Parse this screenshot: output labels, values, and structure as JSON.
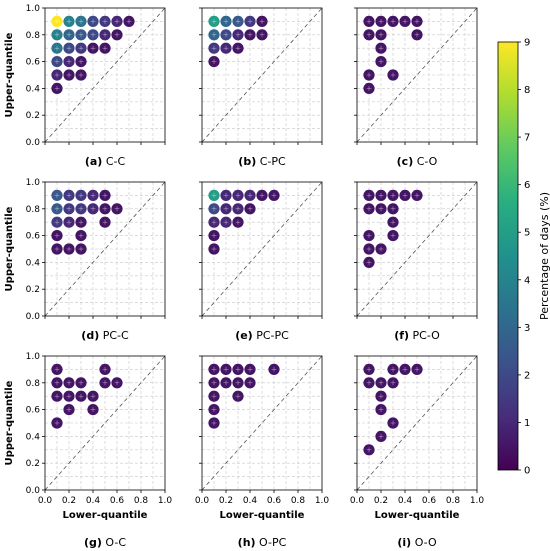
{
  "figure": {
    "ylabel": "Upper-quantile",
    "xlabel": "Lower-quantile",
    "colorbar_label": "Percentage of days (%)",
    "colorbar_ticks": [
      "0",
      "1",
      "2",
      "3",
      "4",
      "5",
      "6",
      "7",
      "8",
      "9"
    ],
    "colormap": "viridis",
    "grid": "dashed"
  },
  "chart_data": [
    {
      "type": "scatter",
      "caption_letter": "(a)",
      "caption_name": "C-C",
      "xlim": [
        0,
        1
      ],
      "ylim": [
        0,
        1
      ],
      "x_ticks": [
        "0.0",
        "0.2",
        "0.4",
        "0.6",
        "0.8",
        "1.0"
      ],
      "y_ticks": [
        "0.0",
        "0.2",
        "0.4",
        "0.6",
        "0.8",
        "1.0"
      ],
      "points": [
        {
          "x": 0.1,
          "y": 0.9,
          "v": 9
        },
        {
          "x": 0.2,
          "y": 0.9,
          "v": 4
        },
        {
          "x": 0.3,
          "y": 0.9,
          "v": 3.5
        },
        {
          "x": 0.4,
          "y": 0.9,
          "v": 2
        },
        {
          "x": 0.5,
          "y": 0.9,
          "v": 1.5
        },
        {
          "x": 0.6,
          "y": 0.9,
          "v": 1
        },
        {
          "x": 0.7,
          "y": 0.9,
          "v": 0.5
        },
        {
          "x": 0.1,
          "y": 0.8,
          "v": 4
        },
        {
          "x": 0.2,
          "y": 0.8,
          "v": 3
        },
        {
          "x": 0.3,
          "y": 0.8,
          "v": 2.5
        },
        {
          "x": 0.4,
          "y": 0.8,
          "v": 2
        },
        {
          "x": 0.5,
          "y": 0.8,
          "v": 1
        },
        {
          "x": 0.6,
          "y": 0.8,
          "v": 0.5
        },
        {
          "x": 0.1,
          "y": 0.7,
          "v": 3.5
        },
        {
          "x": 0.2,
          "y": 0.7,
          "v": 2
        },
        {
          "x": 0.3,
          "y": 0.7,
          "v": 1.5
        },
        {
          "x": 0.4,
          "y": 0.7,
          "v": 0.5
        },
        {
          "x": 0.5,
          "y": 0.7,
          "v": 0.5
        },
        {
          "x": 0.1,
          "y": 0.6,
          "v": 2
        },
        {
          "x": 0.2,
          "y": 0.6,
          "v": 1
        },
        {
          "x": 0.3,
          "y": 0.6,
          "v": 0.5
        },
        {
          "x": 0.1,
          "y": 0.5,
          "v": 1
        },
        {
          "x": 0.2,
          "y": 0.5,
          "v": 0.5
        },
        {
          "x": 0.3,
          "y": 0.5,
          "v": 0.5
        },
        {
          "x": 0.1,
          "y": 0.4,
          "v": 0.5
        }
      ]
    },
    {
      "type": "scatter",
      "caption_letter": "(b)",
      "caption_name": "C-PC",
      "xlim": [
        0,
        1
      ],
      "ylim": [
        0,
        1
      ],
      "x_ticks": [
        "0.0",
        "0.2",
        "0.4",
        "0.6",
        "0.8",
        "1.0"
      ],
      "y_ticks": [
        "0.0",
        "0.2",
        "0.4",
        "0.6",
        "0.8",
        "1.0"
      ],
      "points": [
        {
          "x": 0.1,
          "y": 0.9,
          "v": 5
        },
        {
          "x": 0.2,
          "y": 0.9,
          "v": 3
        },
        {
          "x": 0.3,
          "y": 0.9,
          "v": 2.5
        },
        {
          "x": 0.4,
          "y": 0.9,
          "v": 1.5
        },
        {
          "x": 0.5,
          "y": 0.9,
          "v": 0.5
        },
        {
          "x": 0.1,
          "y": 0.8,
          "v": 3
        },
        {
          "x": 0.2,
          "y": 0.8,
          "v": 2
        },
        {
          "x": 0.3,
          "y": 0.8,
          "v": 1
        },
        {
          "x": 0.4,
          "y": 0.8,
          "v": 0.5
        },
        {
          "x": 0.5,
          "y": 0.8,
          "v": 0.5
        },
        {
          "x": 0.1,
          "y": 0.7,
          "v": 1.5
        },
        {
          "x": 0.2,
          "y": 0.7,
          "v": 1
        },
        {
          "x": 0.3,
          "y": 0.7,
          "v": 0.5
        },
        {
          "x": 0.1,
          "y": 0.6,
          "v": 0.5
        }
      ]
    },
    {
      "type": "scatter",
      "caption_letter": "(c)",
      "caption_name": "C-O",
      "xlim": [
        0,
        1
      ],
      "ylim": [
        0,
        1
      ],
      "x_ticks": [
        "0.0",
        "0.2",
        "0.4",
        "0.6",
        "0.8",
        "1.0"
      ],
      "y_ticks": [
        "0.0",
        "0.2",
        "0.4",
        "0.6",
        "0.8",
        "1.0"
      ],
      "points": [
        {
          "x": 0.1,
          "y": 0.9,
          "v": 0.5
        },
        {
          "x": 0.2,
          "y": 0.9,
          "v": 0.5
        },
        {
          "x": 0.3,
          "y": 0.9,
          "v": 0.5
        },
        {
          "x": 0.4,
          "y": 0.9,
          "v": 0.5
        },
        {
          "x": 0.5,
          "y": 0.9,
          "v": 0.5
        },
        {
          "x": 0.1,
          "y": 0.8,
          "v": 0.5
        },
        {
          "x": 0.2,
          "y": 0.8,
          "v": 0.5
        },
        {
          "x": 0.5,
          "y": 0.8,
          "v": 0.5
        },
        {
          "x": 0.2,
          "y": 0.7,
          "v": 0.5
        },
        {
          "x": 0.2,
          "y": 0.6,
          "v": 0.5
        },
        {
          "x": 0.1,
          "y": 0.5,
          "v": 0.5
        },
        {
          "x": 0.3,
          "y": 0.5,
          "v": 0.5
        },
        {
          "x": 0.1,
          "y": 0.4,
          "v": 0.5
        }
      ]
    },
    {
      "type": "scatter",
      "caption_letter": "(d)",
      "caption_name": "PC-C",
      "xlim": [
        0,
        1
      ],
      "ylim": [
        0,
        1
      ],
      "x_ticks": [
        "0.0",
        "0.2",
        "0.4",
        "0.6",
        "0.8",
        "1.0"
      ],
      "y_ticks": [
        "0.0",
        "0.2",
        "0.4",
        "0.6",
        "0.8",
        "1.0"
      ],
      "points": [
        {
          "x": 0.1,
          "y": 0.9,
          "v": 2.5
        },
        {
          "x": 0.2,
          "y": 0.9,
          "v": 1.5
        },
        {
          "x": 0.3,
          "y": 0.9,
          "v": 1.5
        },
        {
          "x": 0.4,
          "y": 0.9,
          "v": 1
        },
        {
          "x": 0.5,
          "y": 0.9,
          "v": 0.5
        },
        {
          "x": 0.1,
          "y": 0.8,
          "v": 2.5
        },
        {
          "x": 0.2,
          "y": 0.8,
          "v": 1.5
        },
        {
          "x": 0.3,
          "y": 0.8,
          "v": 1.5
        },
        {
          "x": 0.4,
          "y": 0.8,
          "v": 1
        },
        {
          "x": 0.5,
          "y": 0.8,
          "v": 0.5
        },
        {
          "x": 0.6,
          "y": 0.8,
          "v": 0.5
        },
        {
          "x": 0.1,
          "y": 0.7,
          "v": 1.5
        },
        {
          "x": 0.2,
          "y": 0.7,
          "v": 1
        },
        {
          "x": 0.3,
          "y": 0.7,
          "v": 0.5
        },
        {
          "x": 0.5,
          "y": 0.7,
          "v": 0.5
        },
        {
          "x": 0.1,
          "y": 0.6,
          "v": 0.5
        },
        {
          "x": 0.3,
          "y": 0.6,
          "v": 0.5
        },
        {
          "x": 0.1,
          "y": 0.5,
          "v": 0.5
        },
        {
          "x": 0.2,
          "y": 0.5,
          "v": 0.5
        },
        {
          "x": 0.3,
          "y": 0.5,
          "v": 0.5
        }
      ]
    },
    {
      "type": "scatter",
      "caption_letter": "(e)",
      "caption_name": "PC-PC",
      "xlim": [
        0,
        1
      ],
      "ylim": [
        0,
        1
      ],
      "x_ticks": [
        "0.0",
        "0.2",
        "0.4",
        "0.6",
        "0.8",
        "1.0"
      ],
      "y_ticks": [
        "0.0",
        "0.2",
        "0.4",
        "0.6",
        "0.8",
        "1.0"
      ],
      "points": [
        {
          "x": 0.1,
          "y": 0.9,
          "v": 5
        },
        {
          "x": 0.2,
          "y": 0.9,
          "v": 1
        },
        {
          "x": 0.3,
          "y": 0.9,
          "v": 1
        },
        {
          "x": 0.4,
          "y": 0.9,
          "v": 1
        },
        {
          "x": 0.5,
          "y": 0.9,
          "v": 0.5
        },
        {
          "x": 0.6,
          "y": 0.9,
          "v": 0.5
        },
        {
          "x": 0.1,
          "y": 0.8,
          "v": 2
        },
        {
          "x": 0.2,
          "y": 0.8,
          "v": 1
        },
        {
          "x": 0.3,
          "y": 0.8,
          "v": 1
        },
        {
          "x": 0.4,
          "y": 0.8,
          "v": 0.5
        },
        {
          "x": 0.1,
          "y": 0.7,
          "v": 1
        },
        {
          "x": 0.2,
          "y": 0.7,
          "v": 1
        },
        {
          "x": 0.3,
          "y": 0.7,
          "v": 0.5
        },
        {
          "x": 0.1,
          "y": 0.6,
          "v": 0.5
        },
        {
          "x": 0.1,
          "y": 0.5,
          "v": 0.5
        }
      ]
    },
    {
      "type": "scatter",
      "caption_letter": "(f)",
      "caption_name": "PC-O",
      "xlim": [
        0,
        1
      ],
      "ylim": [
        0,
        1
      ],
      "x_ticks": [
        "0.0",
        "0.2",
        "0.4",
        "0.6",
        "0.8",
        "1.0"
      ],
      "y_ticks": [
        "0.0",
        "0.2",
        "0.4",
        "0.6",
        "0.8",
        "1.0"
      ],
      "points": [
        {
          "x": 0.1,
          "y": 0.9,
          "v": 0.5
        },
        {
          "x": 0.2,
          "y": 0.9,
          "v": 0.5
        },
        {
          "x": 0.3,
          "y": 0.9,
          "v": 0.5
        },
        {
          "x": 0.4,
          "y": 0.9,
          "v": 0.5
        },
        {
          "x": 0.5,
          "y": 0.9,
          "v": 0.5
        },
        {
          "x": 0.1,
          "y": 0.8,
          "v": 0.5
        },
        {
          "x": 0.2,
          "y": 0.8,
          "v": 0.5
        },
        {
          "x": 0.3,
          "y": 0.8,
          "v": 0.5
        },
        {
          "x": 0.3,
          "y": 0.7,
          "v": 0.5
        },
        {
          "x": 0.1,
          "y": 0.6,
          "v": 0.5
        },
        {
          "x": 0.3,
          "y": 0.6,
          "v": 0.5
        },
        {
          "x": 0.1,
          "y": 0.5,
          "v": 0.5
        },
        {
          "x": 0.2,
          "y": 0.5,
          "v": 0.5
        },
        {
          "x": 0.1,
          "y": 0.4,
          "v": 0.5
        }
      ]
    },
    {
      "type": "scatter",
      "caption_letter": "(g)",
      "caption_name": "O-C",
      "xlim": [
        0,
        1
      ],
      "ylim": [
        0,
        1
      ],
      "x_ticks": [
        "0.0",
        "0.2",
        "0.4",
        "0.6",
        "0.8",
        "1.0"
      ],
      "y_ticks": [
        "0.0",
        "0.2",
        "0.4",
        "0.6",
        "0.8",
        "1.0"
      ],
      "points": [
        {
          "x": 0.1,
          "y": 0.9,
          "v": 0.5
        },
        {
          "x": 0.5,
          "y": 0.9,
          "v": 0.5
        },
        {
          "x": 0.1,
          "y": 0.8,
          "v": 0.5
        },
        {
          "x": 0.2,
          "y": 0.8,
          "v": 0.5
        },
        {
          "x": 0.3,
          "y": 0.8,
          "v": 0.5
        },
        {
          "x": 0.5,
          "y": 0.8,
          "v": 0.5
        },
        {
          "x": 0.6,
          "y": 0.8,
          "v": 0.5
        },
        {
          "x": 0.1,
          "y": 0.7,
          "v": 0.5
        },
        {
          "x": 0.2,
          "y": 0.7,
          "v": 0.5
        },
        {
          "x": 0.3,
          "y": 0.7,
          "v": 0.5
        },
        {
          "x": 0.4,
          "y": 0.7,
          "v": 0.5
        },
        {
          "x": 0.2,
          "y": 0.6,
          "v": 0.5
        },
        {
          "x": 0.4,
          "y": 0.6,
          "v": 0.5
        },
        {
          "x": 0.1,
          "y": 0.5,
          "v": 0.5
        }
      ]
    },
    {
      "type": "scatter",
      "caption_letter": "(h)",
      "caption_name": "O-PC",
      "xlim": [
        0,
        1
      ],
      "ylim": [
        0,
        1
      ],
      "x_ticks": [
        "0.0",
        "0.2",
        "0.4",
        "0.6",
        "0.8",
        "1.0"
      ],
      "y_ticks": [
        "0.0",
        "0.2",
        "0.4",
        "0.6",
        "0.8",
        "1.0"
      ],
      "points": [
        {
          "x": 0.1,
          "y": 0.9,
          "v": 0.5
        },
        {
          "x": 0.2,
          "y": 0.9,
          "v": 0.5
        },
        {
          "x": 0.3,
          "y": 0.9,
          "v": 0.5
        },
        {
          "x": 0.4,
          "y": 0.9,
          "v": 0.5
        },
        {
          "x": 0.6,
          "y": 0.9,
          "v": 0.5
        },
        {
          "x": 0.1,
          "y": 0.8,
          "v": 0.5
        },
        {
          "x": 0.2,
          "y": 0.8,
          "v": 0.5
        },
        {
          "x": 0.3,
          "y": 0.8,
          "v": 0.5
        },
        {
          "x": 0.4,
          "y": 0.8,
          "v": 0.5
        },
        {
          "x": 0.1,
          "y": 0.7,
          "v": 0.5
        },
        {
          "x": 0.3,
          "y": 0.7,
          "v": 0.5
        },
        {
          "x": 0.1,
          "y": 0.6,
          "v": 0.5
        },
        {
          "x": 0.1,
          "y": 0.5,
          "v": 0.5
        }
      ]
    },
    {
      "type": "scatter",
      "caption_letter": "(i)",
      "caption_name": "O-O",
      "xlim": [
        0,
        1
      ],
      "ylim": [
        0,
        1
      ],
      "x_ticks": [
        "0.0",
        "0.2",
        "0.4",
        "0.6",
        "0.8",
        "1.0"
      ],
      "y_ticks": [
        "0.0",
        "0.2",
        "0.4",
        "0.6",
        "0.8",
        "1.0"
      ],
      "points": [
        {
          "x": 0.1,
          "y": 0.9,
          "v": 0.5
        },
        {
          "x": 0.3,
          "y": 0.9,
          "v": 0.5
        },
        {
          "x": 0.4,
          "y": 0.9,
          "v": 0.5
        },
        {
          "x": 0.5,
          "y": 0.9,
          "v": 0.5
        },
        {
          "x": 0.1,
          "y": 0.8,
          "v": 0.5
        },
        {
          "x": 0.2,
          "y": 0.8,
          "v": 0.5
        },
        {
          "x": 0.3,
          "y": 0.8,
          "v": 0.5
        },
        {
          "x": 0.2,
          "y": 0.7,
          "v": 0.5
        },
        {
          "x": 0.2,
          "y": 0.6,
          "v": 0.5
        },
        {
          "x": 0.3,
          "y": 0.5,
          "v": 0.5
        },
        {
          "x": 0.2,
          "y": 0.4,
          "v": 0.5
        },
        {
          "x": 0.1,
          "y": 0.3,
          "v": 0.5
        }
      ]
    }
  ]
}
